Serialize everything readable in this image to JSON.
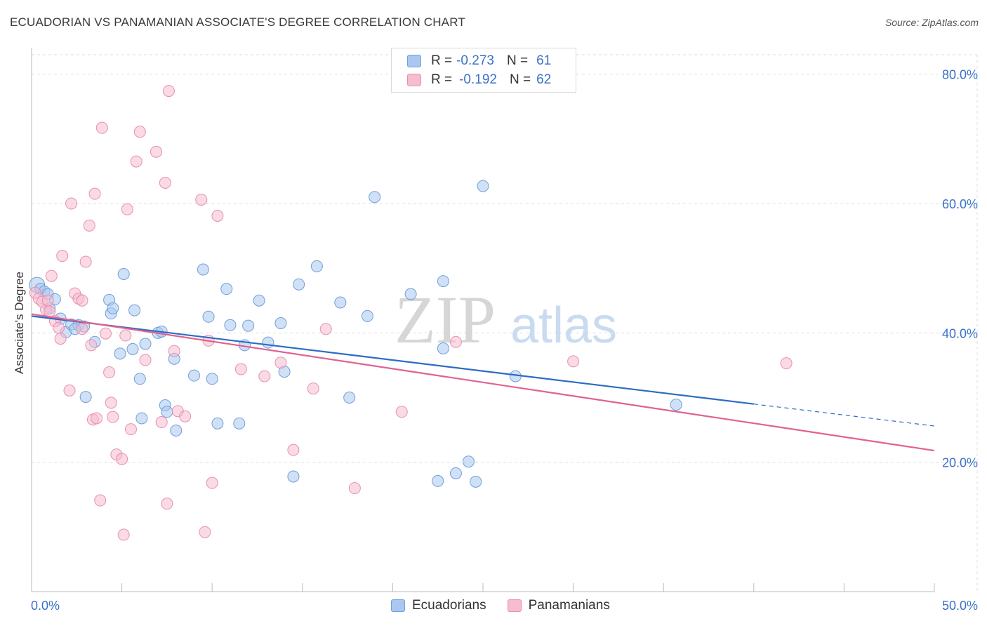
{
  "title": "ECUADORIAN VS PANAMANIAN ASSOCIATE'S DEGREE CORRELATION CHART",
  "source": "Source: ZipAtlas.com",
  "watermark": {
    "zip": "ZIP",
    "atlas": "atlas"
  },
  "legend_top": [
    {
      "r_label": "R =",
      "r_value": "-0.273",
      "n_label": "N =",
      "n_value": "61"
    },
    {
      "r_label": "R =",
      "r_value": "-0.192",
      "n_label": "N =",
      "n_value": "62"
    }
  ],
  "colors": {
    "ecuadorians_fill": "#aac8ef",
    "ecuadorians_stroke": "#6f9fdd",
    "ecuadorians_line": "#2b6cc4",
    "panamanians_fill": "#f6bcd0",
    "panamanians_stroke": "#e98fae",
    "panamanians_line": "#e0628f",
    "tick_label": "#3b72c8",
    "grid": "#dddddd"
  },
  "chart_data": {
    "type": "scatter",
    "title": "ECUADORIAN VS PANAMANIAN ASSOCIATE'S DEGREE CORRELATION CHART",
    "xlabel": "",
    "ylabel": "Associate's Degree",
    "xlim": [
      0,
      50
    ],
    "ylim": [
      0,
      83
    ],
    "x_tick_labels": [
      "0.0%",
      "50.0%"
    ],
    "y_ticks": [
      20,
      40,
      60,
      80
    ],
    "y_tick_labels": [
      "20.0%",
      "40.0%",
      "60.0%",
      "80.0%"
    ],
    "grid": true,
    "legend_position": "top-center",
    "series": [
      {
        "name": "Ecuadorians",
        "r": -0.273,
        "n": 61,
        "trend": {
          "x0": 0,
          "y0": 42.6,
          "x1": 40,
          "y1": 29.0,
          "dash_to_x": 50,
          "dash_to_y": 25.6
        },
        "points": [
          [
            0.3,
            47.4
          ],
          [
            0.5,
            46.8
          ],
          [
            0.7,
            46.4
          ],
          [
            0.9,
            46.0
          ],
          [
            1.0,
            43.8
          ],
          [
            1.3,
            45.2
          ],
          [
            1.6,
            42.2
          ],
          [
            1.9,
            40.1
          ],
          [
            2.2,
            41.3
          ],
          [
            2.6,
            41.2
          ],
          [
            2.9,
            41.0
          ],
          [
            3.0,
            30.1
          ],
          [
            3.5,
            38.6
          ],
          [
            4.3,
            45.1
          ],
          [
            4.4,
            43.0
          ],
          [
            4.5,
            43.8
          ],
          [
            4.9,
            36.8
          ],
          [
            5.1,
            49.1
          ],
          [
            5.6,
            37.5
          ],
          [
            5.7,
            43.5
          ],
          [
            6.0,
            32.9
          ],
          [
            6.1,
            26.8
          ],
          [
            6.3,
            38.3
          ],
          [
            7.0,
            40.0
          ],
          [
            7.2,
            40.2
          ],
          [
            7.4,
            28.8
          ],
          [
            7.5,
            27.8
          ],
          [
            7.9,
            36.0
          ],
          [
            8.0,
            24.9
          ],
          [
            9.0,
            33.4
          ],
          [
            9.5,
            49.8
          ],
          [
            9.8,
            42.5
          ],
          [
            10.0,
            32.9
          ],
          [
            10.3,
            26.0
          ],
          [
            10.8,
            46.8
          ],
          [
            11.0,
            41.2
          ],
          [
            11.5,
            26.0
          ],
          [
            11.8,
            38.1
          ],
          [
            12.0,
            41.1
          ],
          [
            12.6,
            45.0
          ],
          [
            13.1,
            38.5
          ],
          [
            13.8,
            41.5
          ],
          [
            14.0,
            34.0
          ],
          [
            14.5,
            17.8
          ],
          [
            14.8,
            47.5
          ],
          [
            15.8,
            50.3
          ],
          [
            17.1,
            44.7
          ],
          [
            17.6,
            30.0
          ],
          [
            18.6,
            42.6
          ],
          [
            19.0,
            61.0
          ],
          [
            21.0,
            46.0
          ],
          [
            22.5,
            17.1
          ],
          [
            22.8,
            37.6
          ],
          [
            22.8,
            48.0
          ],
          [
            23.5,
            18.3
          ],
          [
            24.2,
            20.1
          ],
          [
            24.6,
            17.0
          ],
          [
            25.0,
            62.7
          ],
          [
            26.8,
            33.3
          ],
          [
            35.7,
            28.9
          ],
          [
            2.4,
            40.6
          ]
        ]
      },
      {
        "name": "Panamanians",
        "r": -0.192,
        "n": 62,
        "trend": {
          "x0": 0,
          "y0": 42.9,
          "x1": 50,
          "y1": 21.8
        },
        "points": [
          [
            0.2,
            46.2
          ],
          [
            0.4,
            45.3
          ],
          [
            0.6,
            44.8
          ],
          [
            0.8,
            43.6
          ],
          [
            1.0,
            43.3
          ],
          [
            1.1,
            48.8
          ],
          [
            1.3,
            41.8
          ],
          [
            1.5,
            40.8
          ],
          [
            1.6,
            39.1
          ],
          [
            1.7,
            51.9
          ],
          [
            2.1,
            31.1
          ],
          [
            2.2,
            60.0
          ],
          [
            2.4,
            46.1
          ],
          [
            2.6,
            45.3
          ],
          [
            2.8,
            40.6
          ],
          [
            2.8,
            45.0
          ],
          [
            3.0,
            51.0
          ],
          [
            3.2,
            56.6
          ],
          [
            3.3,
            38.1
          ],
          [
            3.4,
            26.6
          ],
          [
            3.5,
            61.5
          ],
          [
            3.6,
            26.8
          ],
          [
            3.8,
            14.1
          ],
          [
            3.9,
            71.7
          ],
          [
            4.1,
            39.9
          ],
          [
            4.3,
            33.9
          ],
          [
            4.4,
            29.2
          ],
          [
            4.5,
            27.0
          ],
          [
            4.7,
            21.2
          ],
          [
            5.0,
            20.5
          ],
          [
            5.1,
            8.8
          ],
          [
            5.2,
            39.6
          ],
          [
            5.3,
            59.1
          ],
          [
            5.5,
            25.1
          ],
          [
            5.8,
            66.5
          ],
          [
            6.0,
            71.1
          ],
          [
            6.3,
            35.8
          ],
          [
            6.9,
            68.0
          ],
          [
            7.2,
            26.2
          ],
          [
            7.4,
            63.2
          ],
          [
            7.5,
            13.6
          ],
          [
            7.6,
            77.4
          ],
          [
            7.9,
            37.2
          ],
          [
            8.1,
            27.9
          ],
          [
            8.5,
            27.1
          ],
          [
            9.4,
            60.6
          ],
          [
            9.6,
            9.2
          ],
          [
            9.8,
            38.8
          ],
          [
            10.0,
            16.8
          ],
          [
            10.3,
            58.1
          ],
          [
            11.6,
            34.4
          ],
          [
            12.9,
            33.3
          ],
          [
            13.8,
            35.4
          ],
          [
            14.5,
            21.9
          ],
          [
            15.6,
            31.4
          ],
          [
            16.3,
            40.6
          ],
          [
            17.9,
            16.0
          ],
          [
            20.5,
            27.8
          ],
          [
            23.5,
            38.6
          ],
          [
            30.0,
            35.6
          ],
          [
            41.8,
            35.3
          ],
          [
            0.9,
            45.0
          ]
        ]
      }
    ]
  }
}
